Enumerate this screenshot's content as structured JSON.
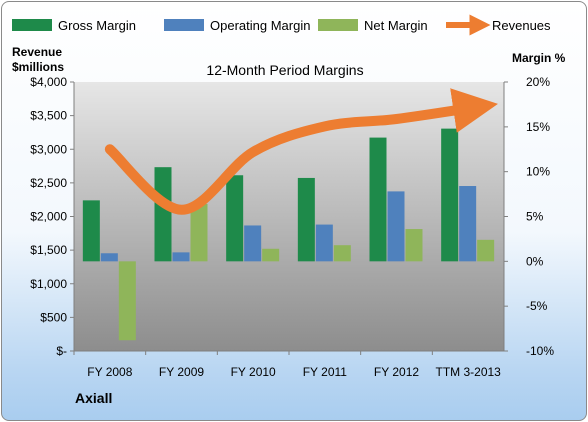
{
  "chart_data": {
    "type": "bar",
    "title": "12-Month Period Margins",
    "categories": [
      "FY 2008",
      "FY 2009",
      "FY 2010",
      "FY 2011",
      "FY 2012",
      "TTM 3-2013"
    ],
    "series": [
      {
        "name": "Gross Margin",
        "type": "bar",
        "axis": "right",
        "color": "#1e8a4a",
        "values": [
          6.8,
          10.5,
          9.6,
          9.3,
          13.8,
          14.8
        ]
      },
      {
        "name": "Operating Margin",
        "type": "bar",
        "axis": "right",
        "color": "#4f81bd",
        "values": [
          0.9,
          1.0,
          4.0,
          4.1,
          7.8,
          8.4
        ]
      },
      {
        "name": "Net Margin",
        "type": "bar",
        "axis": "right",
        "color": "#8fb55a",
        "values": [
          -8.8,
          6.4,
          1.4,
          1.8,
          3.6,
          2.4
        ]
      },
      {
        "name": "Revenues",
        "type": "line",
        "axis": "left",
        "color": "#ed7d31",
        "values": [
          3000,
          2100,
          2960,
          3340,
          3450,
          3620
        ]
      }
    ],
    "y_left": {
      "label_line1": "Revenue",
      "label_line2": "$millions",
      "range": [
        0,
        4000
      ],
      "ticks": [
        0,
        500,
        1000,
        1500,
        2000,
        2500,
        3000,
        3500,
        4000
      ],
      "tick_labels": [
        "$-",
        "$500",
        "$1,000",
        "$1,500",
        "$2,000",
        "$2,500",
        "$3,000",
        "$3,500",
        "$4,000"
      ]
    },
    "y_right": {
      "label": "Margin %",
      "range": [
        -10,
        20
      ],
      "ticks": [
        -10,
        -5,
        0,
        5,
        10,
        15,
        20
      ],
      "tick_labels": [
        "-10%",
        "-5%",
        "0%",
        "5%",
        "10%",
        "15%",
        "20%"
      ]
    },
    "legend_position": "top",
    "grid": false
  },
  "company_label": "Axiall"
}
